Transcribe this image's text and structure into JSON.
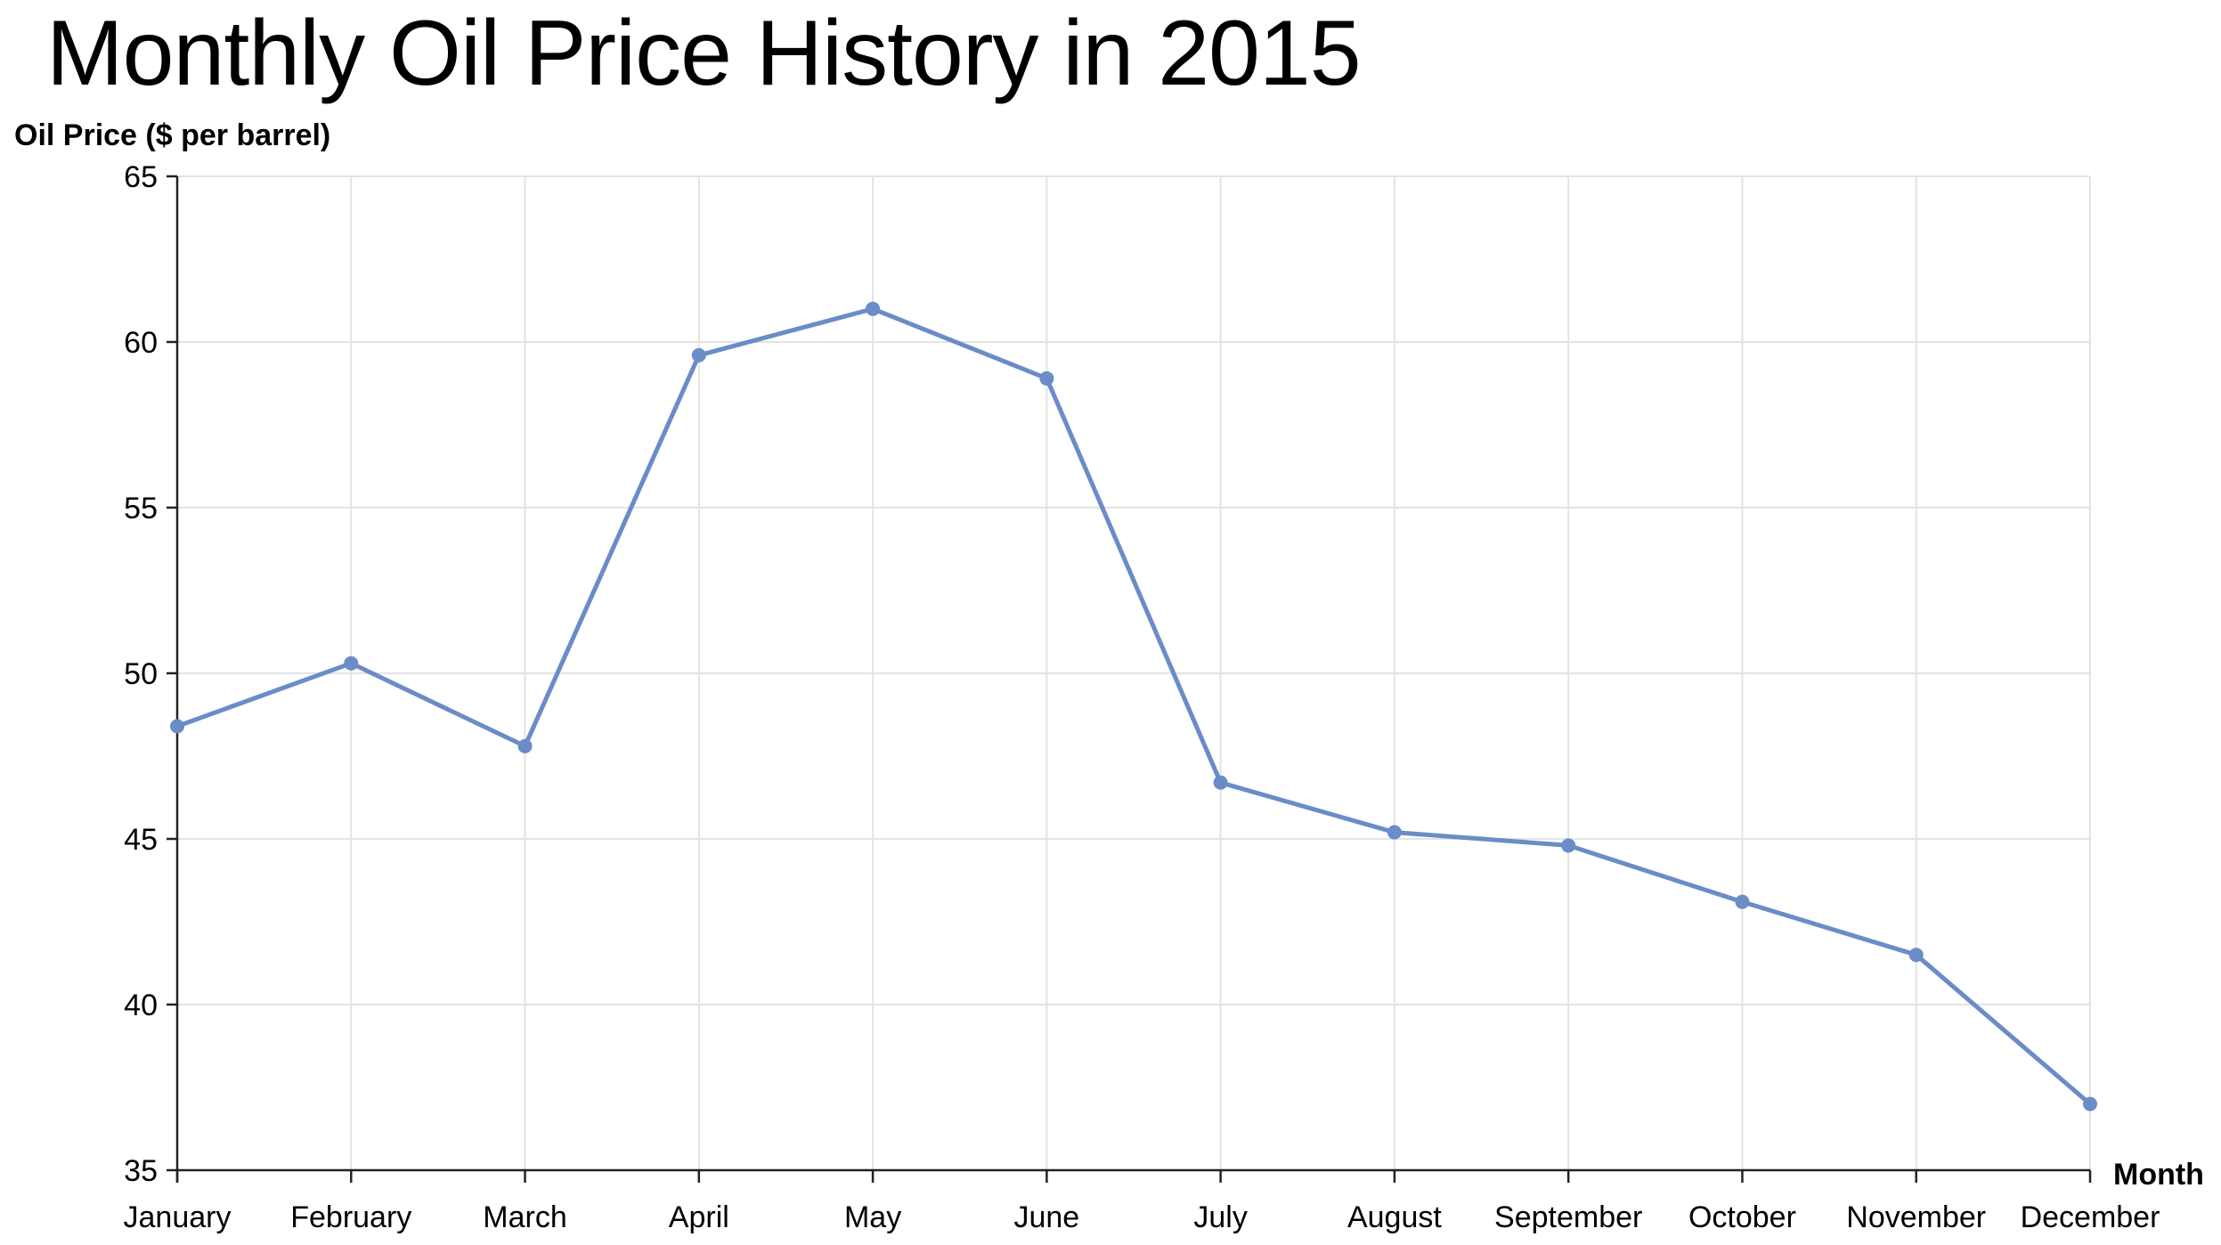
{
  "chart_data": {
    "type": "line",
    "title": "Monthly Oil Price History in 2015",
    "xlabel": "Month",
    "ylabel": "Oil Price ($ per barrel)",
    "categories": [
      "January",
      "February",
      "March",
      "April",
      "May",
      "June",
      "July",
      "August",
      "September",
      "October",
      "November",
      "December"
    ],
    "series": [
      {
        "values": [
          48.4,
          50.3,
          47.8,
          59.6,
          61.0,
          58.9,
          46.7,
          45.2,
          44.8,
          43.1,
          41.5,
          37.0
        ],
        "color": "#6a8cc7"
      }
    ],
    "ylim": [
      35,
      65
    ],
    "yticks": [
      35,
      40,
      45,
      50,
      55,
      60,
      65
    ],
    "grid": true,
    "legend": "none"
  }
}
